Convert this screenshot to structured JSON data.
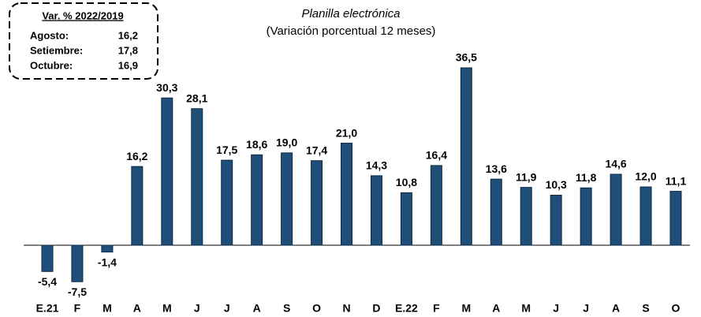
{
  "chart_data": {
    "type": "bar",
    "subtitle": "Planilla electrónica",
    "note": "(Variación porcentual 12 meses)",
    "categories": [
      "E.21",
      "F",
      "M",
      "A",
      "M",
      "J",
      "J",
      "A",
      "S",
      "O",
      "N",
      "D",
      "E.22",
      "F",
      "M",
      "A",
      "M",
      "J",
      "J",
      "A",
      "S",
      "O"
    ],
    "values": [
      -5.4,
      -7.5,
      -1.4,
      16.2,
      30.3,
      28.1,
      17.5,
      18.6,
      19.0,
      17.4,
      21.0,
      14.3,
      10.8,
      16.4,
      36.5,
      13.6,
      11.9,
      10.3,
      11.8,
      14.6,
      12.0,
      11.1
    ],
    "value_labels": [
      "-5,4",
      "-7,5",
      "-1,4",
      "16,2",
      "30,3",
      "28,1",
      "17,5",
      "18,6",
      "19,0",
      "17,4",
      "21,0",
      "14,3",
      "10,8",
      "16,4",
      "36,5",
      "13,6",
      "11,9",
      "10,3",
      "11,8",
      "14,6",
      "12,0",
      "11,1"
    ],
    "color": "#1f4e79"
  },
  "inset": {
    "title": "Var. % 2022/2019",
    "rows": [
      [
        "Agosto:",
        "16,2"
      ],
      [
        "Setiembre:",
        "17,8"
      ],
      [
        "Octubre:",
        "16,9"
      ]
    ]
  }
}
